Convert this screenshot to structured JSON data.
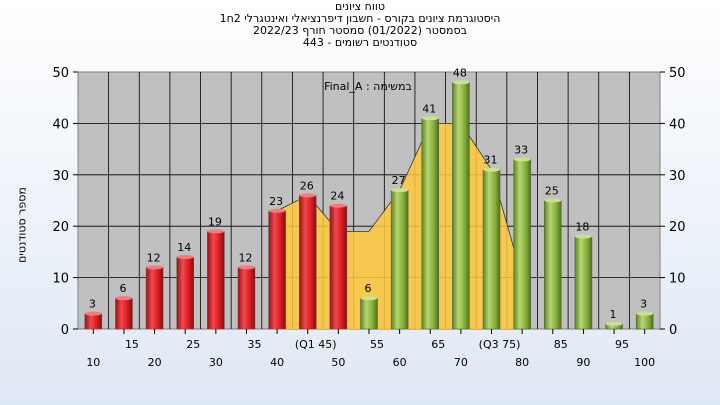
{
  "titles": {
    "line1": "היסטוגרמת ציונים בקורס - חשבון דיפרנציאלי ואינטגרלי 2ח1",
    "line2": "בסמסטר (01/2022) סמסטר חורף 2022/23",
    "line3": "סטודנטים רשומים - 443"
  },
  "colors": {
    "plot_bg": "#c0c0c0",
    "fail_bar": "#e8262b",
    "pass_bar": "#8cb544",
    "area_fill": "#ffc93c"
  },
  "chart_data": {
    "type": "bar",
    "title": "היסטוגרמת ציונים בקורס - חשבון דיפרנציאלי ואינטגרלי 2ח1",
    "annotation": "במשימה : Final_A",
    "xlabel": "טווח ציונים",
    "ylabel": "מספר סטודנטים",
    "ylim": [
      0,
      50
    ],
    "yticks": [
      0,
      10,
      20,
      30,
      40,
      50
    ],
    "grid": true,
    "categories": [
      "10",
      "15",
      "20",
      "25",
      "30",
      "35",
      "40",
      "(Q1 45)",
      "50",
      "55",
      "60",
      "65",
      "70",
      "(Q3 75)",
      "80",
      "85",
      "90",
      "95",
      "100"
    ],
    "values": [
      3,
      6,
      12,
      14,
      19,
      12,
      23,
      26,
      24,
      6,
      27,
      41,
      48,
      31,
      33,
      25,
      18,
      1,
      3
    ],
    "bar_colors": [
      "fail",
      "fail",
      "fail",
      "fail",
      "fail",
      "fail",
      "fail",
      "fail",
      "fail",
      "pass",
      "pass",
      "pass",
      "pass",
      "pass",
      "pass",
      "pass",
      "pass",
      "pass",
      "pass"
    ],
    "area": {
      "x": [
        "40",
        "(Q1 45)",
        "50",
        "55",
        "60",
        "65",
        "70",
        "(Q3 75)",
        "80"
      ],
      "values": [
        23,
        26,
        19,
        19,
        27,
        40,
        40,
        31,
        10
      ]
    }
  }
}
